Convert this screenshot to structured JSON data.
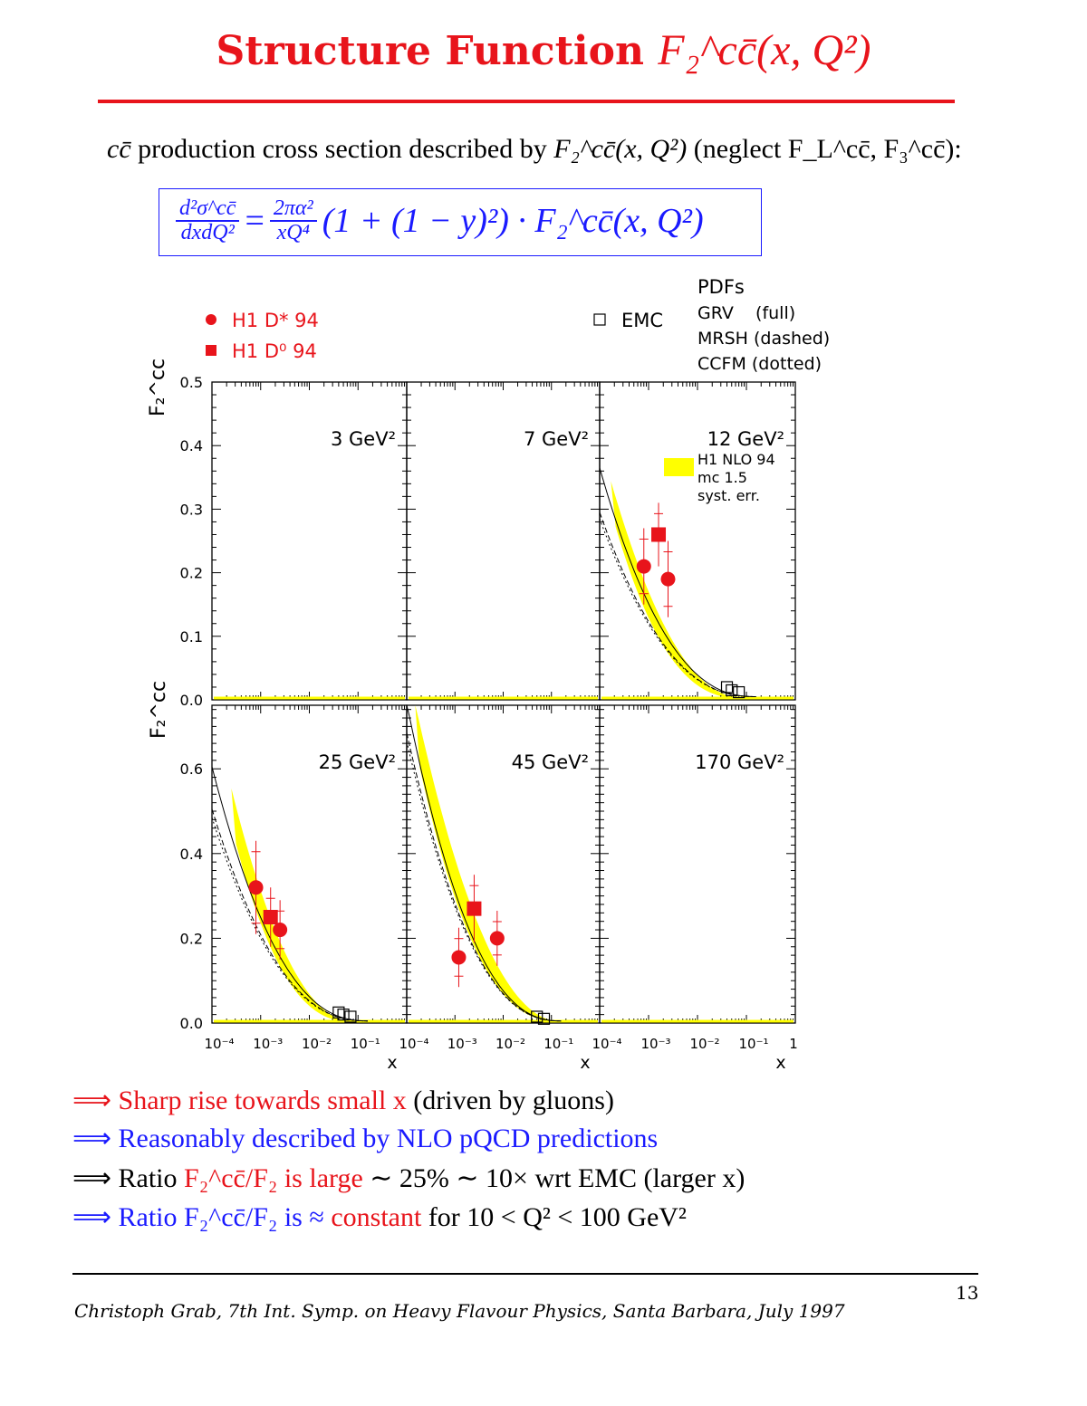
{
  "header": {
    "title_text": "Structure Function",
    "title_math": "F₂^cc̄(x, Q²)"
  },
  "intro": {
    "prefix": "cc̄",
    "text": " production cross section described by ",
    "f2": "F₂^cc̄(x, Q²)",
    "neglect": " (neglect F_L^cc̄, F₃^cc̄):"
  },
  "formula": {
    "lhs_num": "d²σ^cc̄",
    "lhs_den": "dxdQ²",
    "eq": "=",
    "rhs_num": "2πα²",
    "rhs_den": "xQ⁴",
    "rhs_rest": "(1 + (1 − y)²) · F₂^cc̄(x, Q²)"
  },
  "chart_data": {
    "type": "scatter",
    "x_scale": "log",
    "xlim": [
      0.0001,
      1
    ],
    "xlabel": "x",
    "ylabel": "F₂^cc",
    "x_tick_labels": [
      "10⁻⁴",
      "10⁻³",
      "10⁻²",
      "10⁻¹",
      "1"
    ],
    "legend": {
      "data": [
        {
          "label": "H1 D* 94",
          "marker": "circle"
        },
        {
          "label": "H1 D⁰ 94",
          "marker": "square"
        }
      ],
      "emc": {
        "label": "EMC",
        "marker": "open-square"
      },
      "pdf_title": "PDFs",
      "pdfs": [
        "GRV    (full)",
        "MRSH (dashed)",
        "CCFM (dotted)"
      ],
      "band": [
        "H1 NLO 94",
        "mc 1.5",
        "syst. err."
      ]
    },
    "panels": [
      {
        "q2_label": "3 GeV²",
        "ylim": [
          0,
          0.5
        ],
        "y_ticks": [
          "0.0",
          "0.1",
          "0.2",
          "0.3",
          "0.4",
          "0.5"
        ],
        "dstar": [],
        "d0": [],
        "emc": [],
        "curves": false
      },
      {
        "q2_label": "7 GeV²",
        "ylim": [
          0,
          0.5
        ],
        "dstar": [],
        "d0": [],
        "emc": [],
        "curves": false
      },
      {
        "q2_label": "12 GeV²",
        "ylim": [
          0,
          0.5
        ],
        "dstar": [
          {
            "x": 0.0008,
            "y": 0.21,
            "err": 0.06
          },
          {
            "x": 0.0025,
            "y": 0.19,
            "err": 0.06
          }
        ],
        "d0": [
          {
            "x": 0.0016,
            "y": 0.26,
            "err": 0.05
          }
        ],
        "emc": [
          {
            "x": 0.04,
            "y": 0.02
          },
          {
            "x": 0.05,
            "y": 0.015
          },
          {
            "x": 0.07,
            "y": 0.012
          }
        ],
        "curves": true,
        "curve_at_1e4": [
          0.36,
          0.29,
          0.28
        ],
        "band_at": [
          [
            0.00017,
            0.34,
            0.27
          ],
          [
            0.01,
            0.06,
            0.04
          ]
        ]
      },
      {
        "q2_label": "25 GeV²",
        "ylim": [
          0,
          0.75
        ],
        "y_ticks": [
          "0.0",
          "0.2",
          "0.4",
          "0.6"
        ],
        "dstar": [
          {
            "x": 0.0008,
            "y": 0.32,
            "err": 0.11
          },
          {
            "x": 0.0025,
            "y": 0.22,
            "err": 0.07
          }
        ],
        "d0": [
          {
            "x": 0.0016,
            "y": 0.25,
            "err": 0.07
          }
        ],
        "emc": [
          {
            "x": 0.04,
            "y": 0.025
          },
          {
            "x": 0.05,
            "y": 0.02
          },
          {
            "x": 0.07,
            "y": 0.015
          }
        ],
        "curves": true,
        "curve_at_1e4": [
          0.6,
          0.5,
          0.48
        ],
        "band_at": [
          [
            0.00025,
            0.55,
            0.42
          ],
          [
            0.01,
            0.08,
            0.06
          ]
        ]
      },
      {
        "q2_label": "45 GeV²",
        "ylim": [
          0,
          0.75
        ],
        "dstar": [
          {
            "x": 0.0012,
            "y": 0.155,
            "err": 0.07
          },
          {
            "x": 0.0075,
            "y": 0.2,
            "err": 0.065
          }
        ],
        "d0": [
          {
            "x": 0.0025,
            "y": 0.27,
            "err": 0.08
          }
        ],
        "emc": [
          {
            "x": 0.05,
            "y": 0.015
          },
          {
            "x": 0.07,
            "y": 0.01
          }
        ],
        "curves": true,
        "curve_at_1e4": [
          0.75,
          0.68,
          0.66
        ],
        "band_at": [
          [
            0.00015,
            0.75,
            0.6
          ],
          [
            0.02,
            0.06,
            0.04
          ]
        ]
      },
      {
        "q2_label": "170 GeV²",
        "ylim": [
          0,
          0.75
        ],
        "dstar": [],
        "d0": [],
        "emc": [],
        "curves": false
      }
    ]
  },
  "bullets": [
    {
      "arrow": "⟹",
      "a": "Sharp rise towards small x",
      "b": " (driven by gluons)"
    },
    {
      "arrow": "⟹",
      "a": "Reasonably described by NLO pQCD predictions"
    },
    {
      "arrow": "⟹",
      "a": "Ratio ",
      "b": "F₂^cc̄/F₂ is large",
      "c": " ∼ 25%     ∼ 10× wrt EMC (larger x)"
    },
    {
      "arrow": "⟹",
      "a": "Ratio F₂^cc̄/F₂ is ≈ ",
      "b": "constant",
      "c": " for 10 < Q² < 100  GeV²"
    }
  ],
  "footer": {
    "text": "Christoph Grab,    7th  Int.  Symp.  on Heavy Flavour Physics, Santa Barbara, July 1997",
    "page": "13"
  },
  "colors": {
    "red": "#e8141b",
    "blue": "#1a1aff",
    "band": "#ffff00"
  }
}
